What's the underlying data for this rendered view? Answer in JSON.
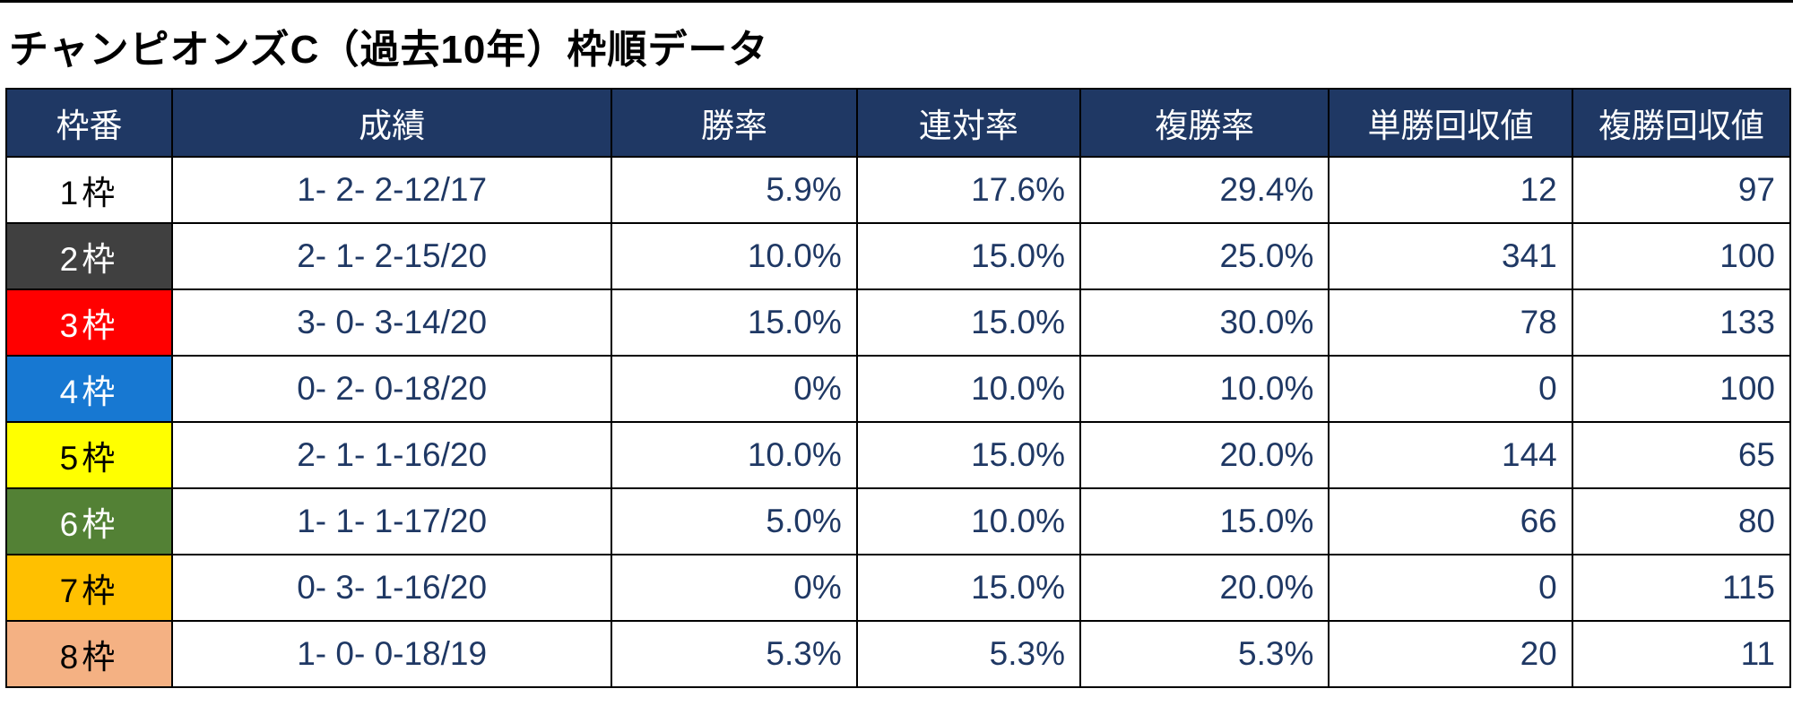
{
  "title": "チャンピオンズC（過去10年）枠順データ",
  "colors": {
    "header_bg": "#1F3864",
    "header_text": "#FFFFFF",
    "body_text": "#1F3864",
    "border": "#000000",
    "frame_1": "#FFFFFF",
    "frame_2": "#404040",
    "frame_3": "#FF0000",
    "frame_4": "#1778D2",
    "frame_5": "#FFFF00",
    "frame_6": "#538135",
    "frame_7": "#FFC000",
    "frame_8": "#F4B183"
  },
  "table": {
    "columns": [
      "枠番",
      "成績",
      "勝率",
      "連対率",
      "複勝率",
      "単勝回収値",
      "複勝回収値"
    ],
    "rows": [
      {
        "frame": "1枠",
        "record": "1- 2- 2-12/17",
        "win": "5.9%",
        "quinella": "17.6%",
        "show": "29.4%",
        "win_return": "12",
        "show_return": "97"
      },
      {
        "frame": "2枠",
        "record": "2- 1- 2-15/20",
        "win": "10.0%",
        "quinella": "15.0%",
        "show": "25.0%",
        "win_return": "341",
        "show_return": "100"
      },
      {
        "frame": "3枠",
        "record": "3- 0- 3-14/20",
        "win": "15.0%",
        "quinella": "15.0%",
        "show": "30.0%",
        "win_return": "78",
        "show_return": "133"
      },
      {
        "frame": "4枠",
        "record": "0- 2- 0-18/20",
        "win": "0%",
        "quinella": "10.0%",
        "show": "10.0%",
        "win_return": "0",
        "show_return": "100"
      },
      {
        "frame": "5枠",
        "record": "2- 1- 1-16/20",
        "win": "10.0%",
        "quinella": "15.0%",
        "show": "20.0%",
        "win_return": "144",
        "show_return": "65"
      },
      {
        "frame": "6枠",
        "record": "1- 1- 1-17/20",
        "win": "5.0%",
        "quinella": "10.0%",
        "show": "15.0%",
        "win_return": "66",
        "show_return": "80"
      },
      {
        "frame": "7枠",
        "record": "0- 3- 1-16/20",
        "win": "0%",
        "quinella": "15.0%",
        "show": "20.0%",
        "win_return": "0",
        "show_return": "115"
      },
      {
        "frame": "8枠",
        "record": "1- 0- 0-18/19",
        "win": "5.3%",
        "quinella": "5.3%",
        "show": "5.3%",
        "win_return": "20",
        "show_return": "11"
      }
    ]
  },
  "chart_data": {
    "type": "table",
    "title": "チャンピオンズC（過去10年）枠順データ",
    "columns": [
      "枠番",
      "成績",
      "勝率",
      "連対率",
      "複勝率",
      "単勝回収値",
      "複勝回収値"
    ],
    "rows": [
      [
        "1枠",
        "1- 2- 2-12/17",
        "5.9%",
        "17.6%",
        "29.4%",
        12,
        97
      ],
      [
        "2枠",
        "2- 1- 2-15/20",
        "10.0%",
        "15.0%",
        "25.0%",
        341,
        100
      ],
      [
        "3枠",
        "3- 0- 3-14/20",
        "15.0%",
        "15.0%",
        "30.0%",
        78,
        133
      ],
      [
        "4枠",
        "0- 2- 0-18/20",
        "0%",
        "10.0%",
        "10.0%",
        0,
        100
      ],
      [
        "5枠",
        "2- 1- 1-16/20",
        "10.0%",
        "15.0%",
        "20.0%",
        144,
        65
      ],
      [
        "6枠",
        "1- 1- 1-17/20",
        "5.0%",
        "10.0%",
        "15.0%",
        66,
        80
      ],
      [
        "7枠",
        "0- 3- 1-16/20",
        "0%",
        "15.0%",
        "20.0%",
        0,
        115
      ],
      [
        "8枠",
        "1- 0- 0-18/19",
        "5.3%",
        "5.3%",
        "5.3%",
        20,
        11
      ]
    ]
  }
}
